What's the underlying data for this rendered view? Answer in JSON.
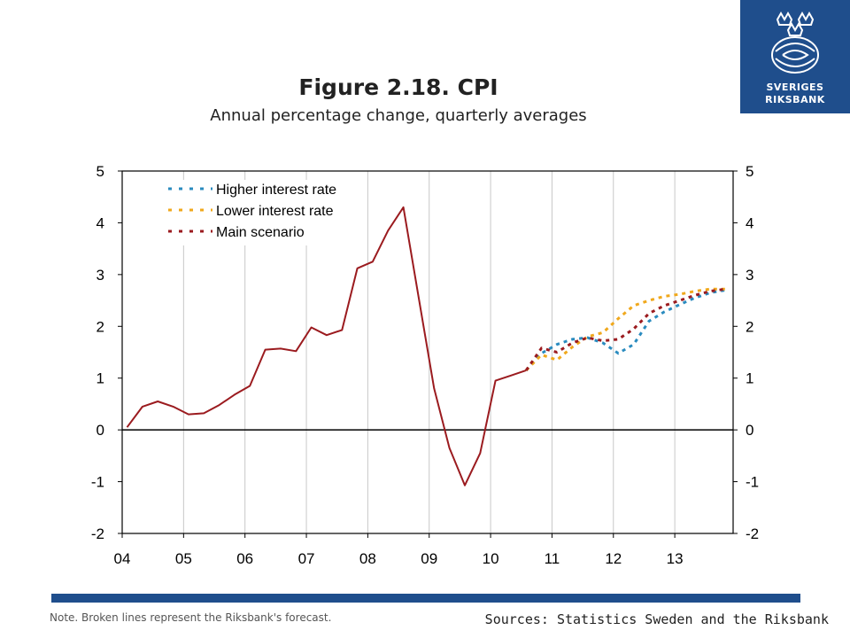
{
  "logo": {
    "line1": "SVERIGES",
    "line2": "RIKSBANK",
    "icon": "riksbank-crest-icon",
    "color": "#1f4e8c"
  },
  "header": {
    "title": "Figure 2.18. CPI",
    "subtitle": "Annual percentage change, quarterly averages"
  },
  "footer": {
    "note": "Note. Broken lines represent the Riksbank's forecast.",
    "sources": "Sources: Statistics Sweden and the Riksbank"
  },
  "chart_data": {
    "type": "line",
    "title": "Figure 2.18. CPI",
    "subtitle": "Annual percentage change, quarterly averages",
    "xlabel": "",
    "ylabel": "",
    "x_tick_labels": [
      "04",
      "05",
      "06",
      "07",
      "08",
      "09",
      "10",
      "11",
      "12",
      "13"
    ],
    "x_tick_positions": [
      2004,
      2005,
      2006,
      2007,
      2008,
      2009,
      2010,
      2011,
      2012,
      2013
    ],
    "xlim": [
      2004,
      2013.95
    ],
    "ylim": [
      -2,
      5
    ],
    "y_ticks": [
      -2,
      -1,
      0,
      1,
      2,
      3,
      4,
      5
    ],
    "grid": true,
    "legend_position": "top-left",
    "series": [
      {
        "key": "outcome",
        "name": "",
        "color": "#9b1b1f",
        "dashed": false,
        "points": [
          [
            2004.08,
            0.05
          ],
          [
            2004.33,
            0.45
          ],
          [
            2004.58,
            0.55
          ],
          [
            2004.83,
            0.45
          ],
          [
            2005.08,
            0.3
          ],
          [
            2005.33,
            0.32
          ],
          [
            2005.58,
            0.48
          ],
          [
            2005.83,
            0.68
          ],
          [
            2006.08,
            0.85
          ],
          [
            2006.33,
            1.55
          ],
          [
            2006.58,
            1.57
          ],
          [
            2006.83,
            1.52
          ],
          [
            2007.08,
            1.98
          ],
          [
            2007.33,
            1.83
          ],
          [
            2007.58,
            1.93
          ],
          [
            2007.83,
            3.12
          ],
          [
            2008.08,
            3.25
          ],
          [
            2008.33,
            3.85
          ],
          [
            2008.58,
            4.3
          ],
          [
            2008.83,
            2.55
          ],
          [
            2009.08,
            0.8
          ],
          [
            2009.33,
            -0.35
          ],
          [
            2009.58,
            -1.07
          ],
          [
            2009.83,
            -0.45
          ],
          [
            2010.08,
            0.95
          ],
          [
            2010.33,
            1.05
          ],
          [
            2010.58,
            1.15
          ]
        ]
      },
      {
        "key": "higher",
        "name": "Higher interest rate",
        "color": "#2a8bbf",
        "dashed": true,
        "points": [
          [
            2010.58,
            1.15
          ],
          [
            2010.83,
            1.48
          ],
          [
            2011.08,
            1.65
          ],
          [
            2011.33,
            1.75
          ],
          [
            2011.58,
            1.78
          ],
          [
            2011.83,
            1.68
          ],
          [
            2012.08,
            1.48
          ],
          [
            2012.33,
            1.65
          ],
          [
            2012.58,
            2.1
          ],
          [
            2012.83,
            2.28
          ],
          [
            2013.08,
            2.42
          ],
          [
            2013.33,
            2.55
          ],
          [
            2013.58,
            2.65
          ],
          [
            2013.83,
            2.7
          ]
        ]
      },
      {
        "key": "lower",
        "name": "Lower interest rate",
        "color": "#f0a81c",
        "dashed": true,
        "points": [
          [
            2010.58,
            1.15
          ],
          [
            2010.83,
            1.45
          ],
          [
            2011.08,
            1.35
          ],
          [
            2011.33,
            1.6
          ],
          [
            2011.58,
            1.8
          ],
          [
            2011.83,
            1.88
          ],
          [
            2012.08,
            2.15
          ],
          [
            2012.33,
            2.4
          ],
          [
            2012.58,
            2.5
          ],
          [
            2012.83,
            2.58
          ],
          [
            2013.08,
            2.62
          ],
          [
            2013.33,
            2.68
          ],
          [
            2013.58,
            2.72
          ],
          [
            2013.83,
            2.72
          ]
        ]
      },
      {
        "key": "main",
        "name": "Main scenario",
        "color": "#9b1b1f",
        "dashed": true,
        "points": [
          [
            2010.58,
            1.15
          ],
          [
            2010.83,
            1.58
          ],
          [
            2011.08,
            1.5
          ],
          [
            2011.33,
            1.68
          ],
          [
            2011.58,
            1.78
          ],
          [
            2011.83,
            1.72
          ],
          [
            2012.08,
            1.75
          ],
          [
            2012.33,
            1.95
          ],
          [
            2012.58,
            2.25
          ],
          [
            2012.83,
            2.4
          ],
          [
            2013.08,
            2.5
          ],
          [
            2013.33,
            2.6
          ],
          [
            2013.58,
            2.68
          ],
          [
            2013.83,
            2.72
          ]
        ]
      }
    ],
    "legend": [
      {
        "label": "Higher interest rate",
        "color": "#2a8bbf"
      },
      {
        "label": "Lower interest rate",
        "color": "#f0a81c"
      },
      {
        "label": "Main scenario",
        "color": "#9b1b1f"
      }
    ]
  }
}
